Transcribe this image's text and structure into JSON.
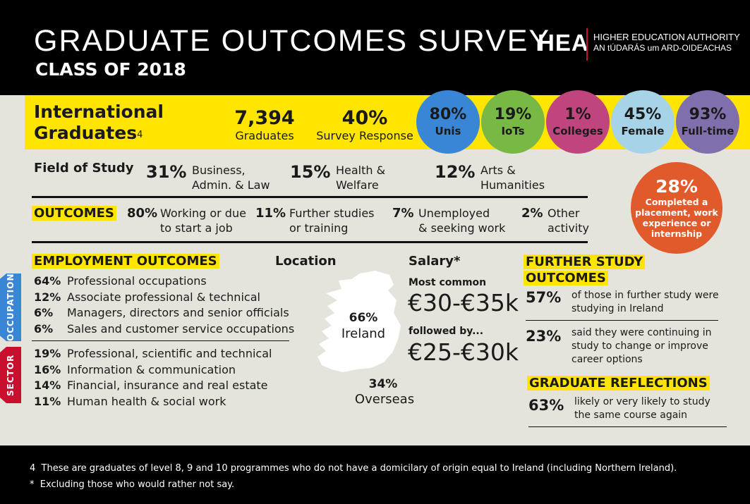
{
  "header": {
    "title": "GRADUATE OUTCOMES SURVEY",
    "subtitle": "CLASS OF 2018",
    "logo": "HEA",
    "org_name": "HIGHER EDUCATION AUTHORITY",
    "org_name_irish": "AN tÚDARÁS um ARD-OIDEACHAS"
  },
  "banner": {
    "title": "International Graduates",
    "footnote_ref": "4",
    "graduates_value": "7,394",
    "graduates_label": "Graduates",
    "response_value": "40%",
    "response_label": "Survey Response",
    "circles": [
      {
        "pct": "80%",
        "label": "Unis",
        "color": "#3a86d6"
      },
      {
        "pct": "19%",
        "label": "IoTs",
        "color": "#78b845"
      },
      {
        "pct": "1%",
        "label": "Colleges",
        "color": "#c0457e"
      },
      {
        "pct": "45%",
        "label": "Female",
        "color": "#a7d3e8"
      },
      {
        "pct": "93%",
        "label": "Full-time",
        "color": "#7f6fad"
      }
    ]
  },
  "field_of_study": {
    "heading": "Field of Study",
    "items": [
      {
        "pct": "31%",
        "line1": "Business,",
        "line2": "Admin. & Law"
      },
      {
        "pct": "15%",
        "line1": "Health &",
        "line2": "Welfare"
      },
      {
        "pct": "12%",
        "line1": "Arts &",
        "line2": "Humanities"
      }
    ]
  },
  "placement": {
    "pct": "28%",
    "line1": "Completed a",
    "line2": "placement, work",
    "line3": "experience or",
    "line4": "internship",
    "color": "#e15a2b"
  },
  "outcomes": {
    "heading": "OUTCOMES",
    "items": [
      {
        "pct": "80%",
        "line1": "Working or due",
        "line2": "to start a job"
      },
      {
        "pct": "11%",
        "line1": "Further studies",
        "line2": "or training"
      },
      {
        "pct": "7%",
        "line1": "Unemployed",
        "line2": "& seeking work"
      },
      {
        "pct": "2%",
        "line1": "Other",
        "line2": "activity"
      }
    ]
  },
  "employment": {
    "heading": "EMPLOYMENT OUTCOMES",
    "occupation_tag": "OCCUPATION",
    "sector_tag": "SECTOR",
    "occupation": [
      {
        "pct": "64%",
        "label": "Professional occupations"
      },
      {
        "pct": "12%",
        "label": "Associate professional & technical"
      },
      {
        "pct": "6%",
        "label": "Managers, directors and senior officials"
      },
      {
        "pct": "6%",
        "label": "Sales and customer service occupations"
      }
    ],
    "sector": [
      {
        "pct": "19%",
        "label": "Professional, scientific and technical"
      },
      {
        "pct": "16%",
        "label": "Information & communication"
      },
      {
        "pct": "14%",
        "label": "Financial, insurance and real estate"
      },
      {
        "pct": "11%",
        "label": "Human health & social work"
      }
    ]
  },
  "location": {
    "heading": "Location",
    "ireland_pct": "66%",
    "ireland_label": "Ireland",
    "overseas_pct": "34%",
    "overseas_label": "Overseas"
  },
  "salary": {
    "heading": "Salary*",
    "most_common_label": "Most common",
    "most_common_value": "€30-€35k",
    "followed_label": "followed by...",
    "followed_value": "€25-€30k"
  },
  "further_study": {
    "heading_line1": "FURTHER STUDY",
    "heading_line2": "OUTCOMES",
    "items": [
      {
        "pct": "57%",
        "line1": "of those in further study were",
        "line2": "studying in Ireland",
        "line3": ""
      },
      {
        "pct": "23%",
        "line1": "said they were continuing in",
        "line2": "study to change or improve",
        "line3": "career options"
      }
    ]
  },
  "reflections": {
    "heading": "GRADUATE REFLECTIONS",
    "pct": "63%",
    "line1": "likely or very likely to study",
    "line2": "the same course again"
  },
  "footer": {
    "note4_marker": "4",
    "note4": "These are graduates of level 8, 9 and 10 programmes who do not have a domicilary of origin equal to Ireland (including Northern Ireland).",
    "note_star_marker": "*",
    "note_star": "Excluding those who would rather not say."
  }
}
